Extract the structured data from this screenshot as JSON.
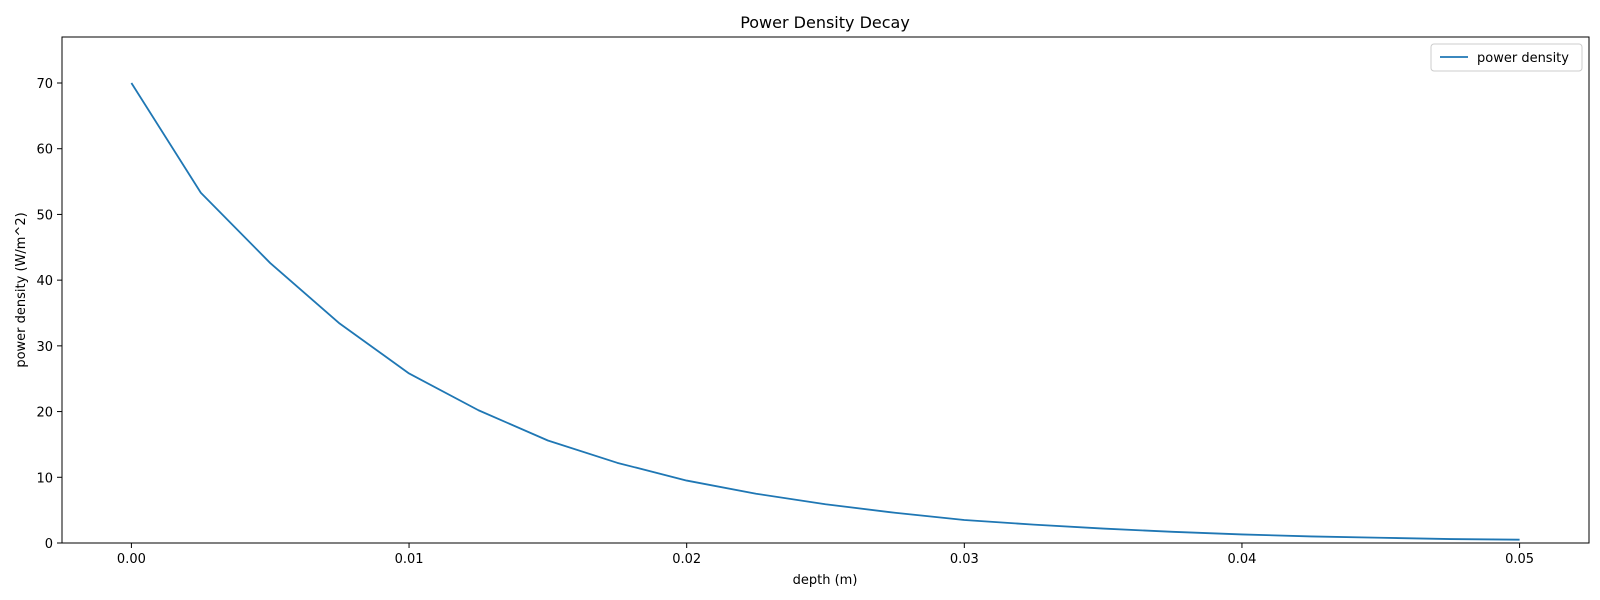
{
  "chart_data": {
    "type": "line",
    "title": "Power Density Decay",
    "xlabel": "depth (m)",
    "ylabel": "power density (W/m^2)",
    "xlim": [
      -0.0025,
      0.0525
    ],
    "ylim": [
      0,
      77
    ],
    "x_ticks": [
      0.0,
      0.01,
      0.02,
      0.03,
      0.04,
      0.05
    ],
    "x_tick_labels": [
      "0.00",
      "0.01",
      "0.02",
      "0.03",
      "0.04",
      "0.05"
    ],
    "y_ticks": [
      0,
      10,
      20,
      30,
      40,
      50,
      60,
      70
    ],
    "y_tick_labels": [
      "0",
      "10",
      "20",
      "30",
      "40",
      "50",
      "60",
      "70"
    ],
    "grid": false,
    "legend_position": "top-right",
    "series": [
      {
        "name": "power density",
        "color": "#1f77b4",
        "x": [
          0.0,
          0.0025,
          0.005,
          0.0075,
          0.01,
          0.0125,
          0.015,
          0.0175,
          0.02,
          0.0225,
          0.025,
          0.0275,
          0.03,
          0.0325,
          0.035,
          0.0375,
          0.04,
          0.0425,
          0.045,
          0.0475,
          0.05
        ],
        "y": [
          70.0,
          53.3,
          42.6,
          33.4,
          25.8,
          20.2,
          15.6,
          12.2,
          9.5,
          7.5,
          5.9,
          4.6,
          3.5,
          2.8,
          2.2,
          1.7,
          1.3,
          1.0,
          0.8,
          0.6,
          0.5
        ]
      }
    ]
  }
}
